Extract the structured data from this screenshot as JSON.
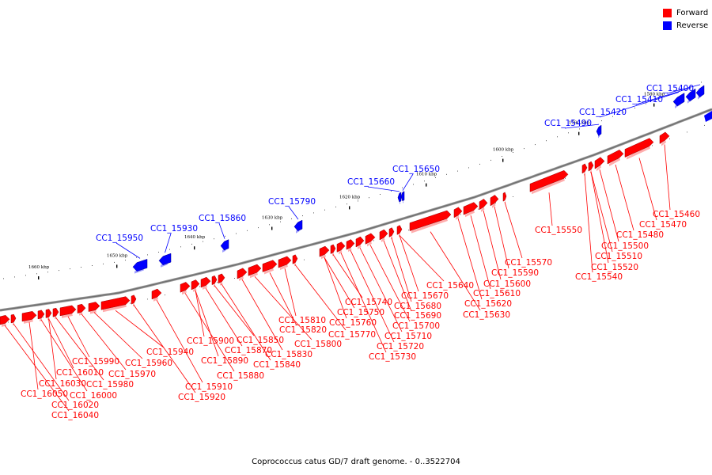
{
  "legend": {
    "forward_label": "Forward",
    "reverse_label": "Reverse",
    "forward_color": "#ff0000",
    "reverse_color": "#0000ff"
  },
  "caption": "Coprococcus catus GD/7 draft genome. - 0..3522704",
  "kbp_markers": [
    "1660 kbp",
    "1650 kbp",
    "1640 kbp",
    "1630 kbp",
    "1620 kbp",
    "1610 kbp",
    "1600 kbp",
    "1590 kbp",
    "1580 kbp"
  ],
  "forward_labels": [
    "CC1_16040",
    "CC1_16020",
    "CC1_16050",
    "CC1_16000",
    "CC1_16030",
    "CC1_16010",
    "CC1_15980",
    "CC1_15990",
    "CC1_15970",
    "CC1_15960",
    "CC1_15940",
    "CC1_15920",
    "CC1_15910",
    "CC1_15880",
    "CC1_15890",
    "CC1_15900",
    "CC1_15870",
    "CC1_15850",
    "CC1_15840",
    "CC1_15830",
    "CC1_15800",
    "CC1_15820",
    "CC1_15810",
    "CC1_15770",
    "CC1_15760",
    "CC1_15750",
    "CC1_15740",
    "CC1_15730",
    "CC1_15720",
    "CC1_15710",
    "CC1_15700",
    "CC1_15690",
    "CC1_15680",
    "CC1_15670",
    "CC1_15640",
    "CC1_15630",
    "CC1_15620",
    "CC1_15610",
    "CC1_15600",
    "CC1_15590",
    "CC1_15570",
    "CC1_15550",
    "CC1_15540",
    "CC1_15520",
    "CC1_15510",
    "CC1_15500",
    "CC1_15480",
    "CC1_15470",
    "CC1_15460"
  ],
  "reverse_labels": [
    "CC1_15950",
    "CC1_15930",
    "CC1_15860",
    "CC1_15790",
    "CC1_15660",
    "CC1_15650",
    "CC1_15490",
    "CC1_15420",
    "CC1_15410",
    "CC1_15400"
  ]
}
